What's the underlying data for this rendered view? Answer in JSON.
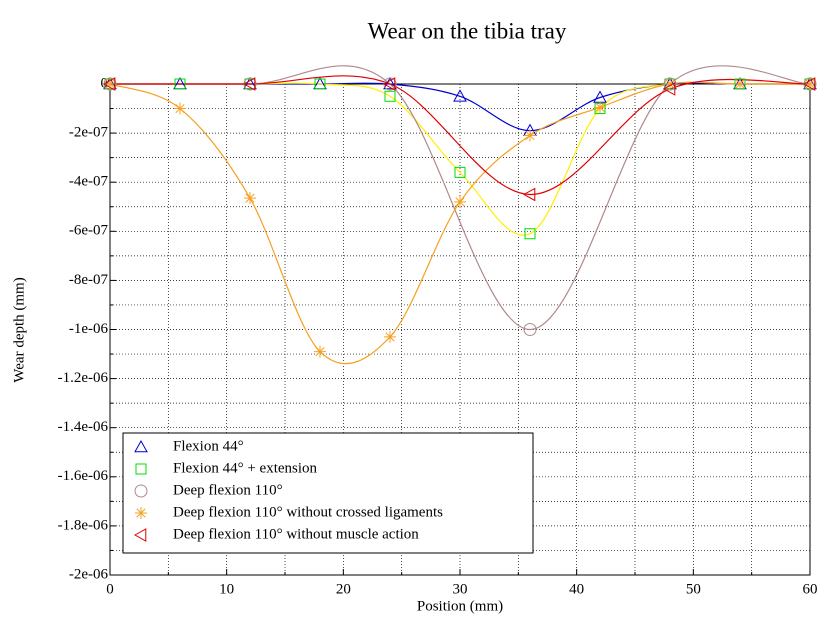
{
  "chart_data": {
    "type": "line",
    "title": "Wear on the tibia tray",
    "xlabel": "Position (mm)",
    "ylabel": "Wear depth (mm)",
    "xlim": [
      0,
      60
    ],
    "xticks": [
      0,
      10,
      20,
      30,
      40,
      50,
      60
    ],
    "xminor": [
      5,
      15,
      25,
      35,
      45,
      55
    ],
    "ylim": [
      -2e-06,
      0
    ],
    "yticks": [
      0,
      {
        "value": -2e-07,
        "label": "-2e-07"
      },
      {
        "value": -4e-07,
        "label": "-4e-07"
      },
      {
        "value": -6e-07,
        "label": "-6e-07"
      },
      {
        "value": -8e-07,
        "label": "-8e-07"
      },
      {
        "value": -1e-06,
        "label": "-1e-06"
      },
      {
        "value": -1.2e-06,
        "label": "-1.2e-06"
      },
      {
        "value": -1.4e-06,
        "label": "-1.4e-06"
      },
      {
        "value": -1.6e-06,
        "label": "-1.6e-06"
      },
      {
        "value": -1.8e-06,
        "label": "-1.8e-06"
      },
      {
        "value": -2e-06,
        "label": "-2e-06"
      }
    ],
    "yminor": [
      -1e-07,
      -3e-07,
      -5e-07,
      -7e-07,
      -9e-07,
      -1.1e-06,
      -1.3e-06,
      -1.5e-06,
      -1.7e-06,
      -1.9e-06
    ],
    "grid": true,
    "legend": "lower left",
    "series": [
      {
        "name": "Flexion 44°",
        "color": "#0000d0",
        "line_color": "#0000d0",
        "marker": "triangle-up",
        "x": [
          0,
          6,
          12,
          18,
          24,
          30,
          36,
          42,
          48,
          54,
          60
        ],
        "values": [
          0,
          0,
          0,
          0,
          0,
          -5e-08,
          -1.9e-07,
          -5.5e-08,
          0,
          0,
          0
        ]
      },
      {
        "name": "Flexion 44° + extension",
        "color": "#00dd00",
        "line_color": "#ffee00",
        "marker": "square",
        "x": [
          0,
          6,
          12,
          18,
          24,
          30,
          36,
          42,
          48,
          54,
          60
        ],
        "values": [
          0,
          0,
          0,
          0,
          -5e-08,
          -3.6e-07,
          -6.1e-07,
          -1e-07,
          0,
          0,
          0
        ]
      },
      {
        "name": "Deep flexion 110°",
        "color": "#b08a8a",
        "line_color": "#b08a8a",
        "marker": "circle",
        "x": [
          0,
          12,
          24,
          36,
          48,
          60
        ],
        "values": [
          0,
          0,
          0,
          -1e-06,
          0,
          0
        ]
      },
      {
        "name": "Deep flexion 110° without crossed ligaments",
        "color": "#f5a020",
        "line_color": "#f5a020",
        "marker": "star",
        "x": [
          0,
          6,
          12,
          18,
          24,
          30,
          36,
          42,
          48,
          54,
          60
        ],
        "values": [
          0,
          -1e-07,
          -4.65e-07,
          -1.09e-06,
          -1.03e-06,
          -4.8e-07,
          -2.1e-07,
          -9.5e-08,
          0,
          0,
          0
        ]
      },
      {
        "name": "Deep flexion 110° without muscle action",
        "color": "#e00000",
        "line_color": "#e00000",
        "marker": "triangle-left",
        "x": [
          0,
          12,
          24,
          36,
          48,
          60
        ],
        "values": [
          0,
          0,
          0,
          -4.5e-07,
          -2e-08,
          0
        ]
      }
    ]
  }
}
